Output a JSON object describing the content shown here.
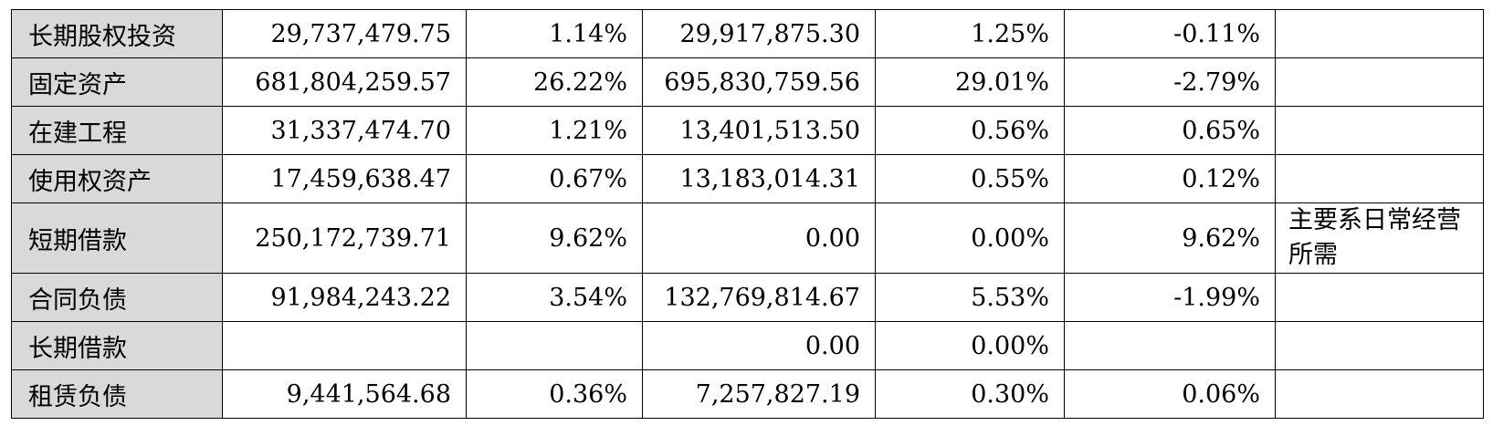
{
  "table": {
    "rows": [
      [
        "长期股权投资",
        "29,737,479.75",
        "1.14%",
        "29,917,875.30",
        "1.25%",
        "-0.11%",
        null
      ],
      [
        "固定资产",
        "681,804,259.57",
        "26.22%",
        "695,830,759.56",
        "29.01%",
        "-2.79%",
        null
      ],
      [
        "在建工程",
        "31,337,474.70",
        "1.21%",
        "13,401,513.50",
        "0.56%",
        "0.65%",
        null
      ],
      [
        "使用权资产",
        "17,459,638.47",
        "0.67%",
        "13,183,014.31",
        "0.55%",
        "0.12%",
        null
      ],
      [
        "短期借款",
        "250,172,739.71",
        "9.62%",
        "0.00",
        "0.00%",
        "9.62%",
        "主要系日常经营所需"
      ],
      [
        "合同负债",
        "91,984,243.22",
        "3.54%",
        "132,769,814.67",
        "5.53%",
        "-1.99%",
        null
      ],
      [
        "长期借款",
        null,
        null,
        "0.00",
        "0.00%",
        null,
        null
      ],
      [
        "租赁负债",
        "9,441,564.68",
        "0.36%",
        "7,257,827.19",
        "0.30%",
        "0.06%",
        null
      ]
    ]
  }
}
